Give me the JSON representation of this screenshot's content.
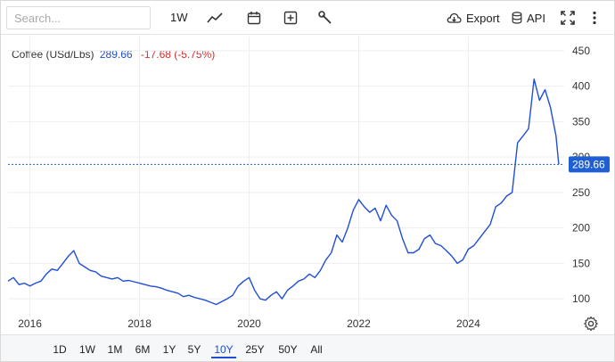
{
  "toolbar": {
    "search_placeholder": "Search...",
    "interval_label": "1W",
    "export_label": "Export",
    "api_label": "API",
    "icons": [
      "line-chart-icon",
      "calendar-icon",
      "add-indicator-icon",
      "wrench-icon",
      "cloud-download-icon",
      "database-icon",
      "fullscreen-icon",
      "more-vertical-icon"
    ]
  },
  "legend": {
    "name": "Coffee (USd/Lbs)",
    "price": "289.66",
    "change": "-17.68 (-5.75%)"
  },
  "colors": {
    "line": "#1f4fd6",
    "down": "#d9302c",
    "grid": "#eeeeee",
    "price_tag": "#1f5fd1"
  },
  "chart_data": {
    "type": "line",
    "title": "",
    "xlabel": "",
    "ylabel": "",
    "x_range": [
      2015.6,
      2025.75
    ],
    "ylim": [
      75,
      470
    ],
    "y_ticks": [
      100,
      150,
      200,
      250,
      300,
      350,
      400,
      450
    ],
    "x_ticks": [
      2016,
      2018,
      2020,
      2022,
      2024
    ],
    "grid": true,
    "price_line": 289.66,
    "price_tag": "289.66",
    "series": [
      {
        "x": [
          2015.6,
          2015.7,
          2015.8,
          2015.9,
          2016.0,
          2016.1,
          2016.2,
          2016.3,
          2016.4,
          2016.5,
          2016.6,
          2016.7,
          2016.8,
          2016.9,
          2017.0,
          2017.1,
          2017.2,
          2017.3,
          2017.4,
          2017.5,
          2017.6,
          2017.7,
          2017.8,
          2017.9,
          2018.0,
          2018.1,
          2018.2,
          2018.3,
          2018.4,
          2018.5,
          2018.6,
          2018.7,
          2018.8,
          2018.9,
          2019.0,
          2019.1,
          2019.2,
          2019.3,
          2019.4,
          2019.5,
          2019.6,
          2019.7,
          2019.8,
          2019.9,
          2020.0,
          2020.1,
          2020.2,
          2020.3,
          2020.4,
          2020.5,
          2020.6,
          2020.7,
          2020.8,
          2020.9,
          2021.0,
          2021.1,
          2021.2,
          2021.3,
          2021.4,
          2021.5,
          2021.6,
          2021.7,
          2021.8,
          2021.9,
          2022.0,
          2022.1,
          2022.2,
          2022.3,
          2022.4,
          2022.5,
          2022.6,
          2022.7,
          2022.8,
          2022.9,
          2023.0,
          2023.1,
          2023.2,
          2023.3,
          2023.4,
          2023.5,
          2023.6,
          2023.7,
          2023.8,
          2023.9,
          2024.0,
          2024.1,
          2024.2,
          2024.3,
          2024.4,
          2024.5,
          2024.6,
          2024.7,
          2024.8,
          2024.9,
          2025.0,
          2025.1,
          2025.2,
          2025.3,
          2025.4,
          2025.5,
          2025.6,
          2025.65
        ],
        "y": [
          125,
          130,
          120,
          122,
          118,
          122,
          125,
          135,
          142,
          140,
          150,
          160,
          168,
          150,
          145,
          140,
          138,
          132,
          130,
          128,
          130,
          125,
          126,
          124,
          122,
          120,
          118,
          117,
          115,
          112,
          110,
          108,
          103,
          105,
          102,
          100,
          98,
          95,
          92,
          96,
          100,
          105,
          118,
          125,
          130,
          112,
          100,
          98,
          105,
          110,
          100,
          112,
          118,
          125,
          128,
          135,
          130,
          140,
          155,
          165,
          190,
          180,
          200,
          225,
          240,
          230,
          222,
          228,
          210,
          232,
          218,
          210,
          185,
          165,
          165,
          170,
          185,
          190,
          178,
          175,
          168,
          160,
          150,
          155,
          170,
          175,
          185,
          195,
          205,
          230,
          235,
          245,
          250,
          320,
          330,
          340,
          410,
          380,
          395,
          370,
          330,
          289.66
        ]
      }
    ]
  },
  "range_buttons": [
    {
      "label": "1D"
    },
    {
      "label": "1W"
    },
    {
      "label": "1M"
    },
    {
      "label": "6M"
    },
    {
      "label": "1Y"
    },
    {
      "label": "5Y"
    },
    {
      "label": "10Y"
    },
    {
      "label": "25Y"
    },
    {
      "label": "50Y"
    },
    {
      "label": "All"
    }
  ],
  "active_range": "10Y"
}
